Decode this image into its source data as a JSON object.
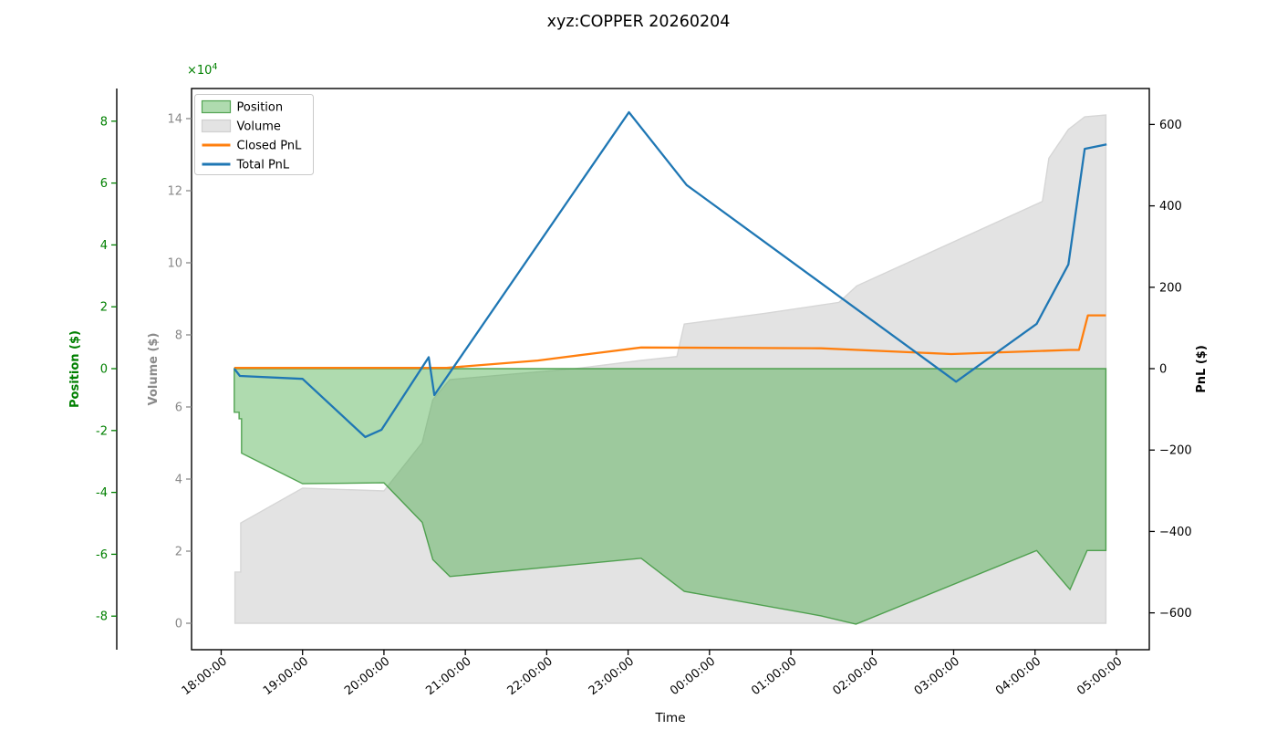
{
  "title": "xyz:COPPER 20260204",
  "chart_data": {
    "type": "area",
    "title": "xyz:COPPER 20260204",
    "xlabel": "Time",
    "x_range_hours": [
      -0.364,
      11.404
    ],
    "x_ticks": [
      {
        "t": 0,
        "label": "18:00:00"
      },
      {
        "t": 1,
        "label": "19:00:00"
      },
      {
        "t": 2,
        "label": "20:00:00"
      },
      {
        "t": 3,
        "label": "21:00:00"
      },
      {
        "t": 4,
        "label": "22:00:00"
      },
      {
        "t": 5,
        "label": "23:00:00"
      },
      {
        "t": 6,
        "label": "00:00:00"
      },
      {
        "t": 7,
        "label": "01:00:00"
      },
      {
        "t": 8,
        "label": "02:00:00"
      },
      {
        "t": 9,
        "label": "03:00:00"
      },
      {
        "t": 10,
        "label": "04:00:00"
      },
      {
        "t": 11,
        "label": "05:00:00"
      }
    ],
    "axes": [
      {
        "id": "position",
        "label": "Position ($)",
        "side": "far-left",
        "color": "#008000",
        "offset_text": "×10",
        "offset_exp": "4",
        "ticks": [
          -8,
          -6,
          -4,
          -2,
          0,
          2,
          4,
          6,
          8
        ],
        "range": [
          -9.085,
          9.056
        ],
        "unit": "1e4 $"
      },
      {
        "id": "volume",
        "label": "Volume ($)",
        "side": "left",
        "color": "#8a8a8a",
        "ticks": [
          0,
          2,
          4,
          6,
          8,
          10,
          12,
          14
        ],
        "range": [
          -0.734,
          14.835
        ],
        "unit": "1e4 $"
      },
      {
        "id": "pnl",
        "label": "PnL ($)",
        "side": "right",
        "color": "#000000",
        "ticks": [
          -600,
          -400,
          -200,
          0,
          200,
          400,
          600
        ],
        "range": [
          -690.5,
          688.3
        ],
        "unit": "$"
      }
    ],
    "series": [
      {
        "name": "Volume",
        "axis": "volume",
        "kind": "area",
        "baseline": 0,
        "fill": "#e3e3e3",
        "stroke": "#d6d6d6",
        "points": [
          [
            0.17,
            0
          ],
          [
            0.17,
            1.42
          ],
          [
            0.24,
            1.42
          ],
          [
            0.24,
            2.78
          ],
          [
            1.0,
            3.75
          ],
          [
            2.0,
            3.67
          ],
          [
            2.47,
            5.01
          ],
          [
            2.6,
            6.2
          ],
          [
            2.81,
            6.76
          ],
          [
            4.34,
            7.06
          ],
          [
            5.16,
            7.29
          ],
          [
            5.6,
            7.4
          ],
          [
            5.69,
            8.3
          ],
          [
            6.69,
            8.6
          ],
          [
            7.59,
            8.9
          ],
          [
            7.81,
            9.36
          ],
          [
            10.09,
            11.7
          ],
          [
            10.17,
            12.9
          ],
          [
            10.41,
            13.7
          ],
          [
            10.61,
            14.05
          ],
          [
            10.87,
            14.1
          ]
        ]
      },
      {
        "name": "Position",
        "axis": "position",
        "kind": "area",
        "baseline": 0,
        "fill": "rgba(44,160,44,0.38)",
        "stroke": "rgba(60,150,60,0.85)",
        "points": [
          [
            0.16,
            0
          ],
          [
            0.16,
            -1.41
          ],
          [
            0.22,
            -1.41
          ],
          [
            0.22,
            -1.62
          ],
          [
            0.25,
            -1.62
          ],
          [
            0.25,
            -2.73
          ],
          [
            1.0,
            -3.72
          ],
          [
            2.0,
            -3.69
          ],
          [
            2.47,
            -4.97
          ],
          [
            2.6,
            -6.17
          ],
          [
            2.81,
            -6.72
          ],
          [
            5.16,
            -6.13
          ],
          [
            5.69,
            -7.2
          ],
          [
            7.37,
            -7.99
          ],
          [
            7.8,
            -8.26
          ],
          [
            10.02,
            -5.88
          ],
          [
            10.43,
            -7.14
          ],
          [
            10.64,
            -5.88
          ],
          [
            10.87,
            -5.88
          ]
        ]
      },
      {
        "name": "Closed PnL",
        "axis": "pnl",
        "kind": "line",
        "stroke": "#ff7f0e",
        "points": [
          [
            0.16,
            2
          ],
          [
            2.77,
            2
          ],
          [
            3.89,
            20
          ],
          [
            4.64,
            39
          ],
          [
            5.16,
            52
          ],
          [
            7.37,
            50
          ],
          [
            8.97,
            36
          ],
          [
            10.43,
            46
          ],
          [
            10.54,
            46
          ],
          [
            10.65,
            131
          ],
          [
            10.87,
            131
          ]
        ]
      },
      {
        "name": "Total PnL",
        "axis": "pnl",
        "kind": "line",
        "stroke": "#1f77b4",
        "points": [
          [
            0.16,
            0
          ],
          [
            0.23,
            -18
          ],
          [
            1.0,
            -25
          ],
          [
            1.77,
            -168
          ],
          [
            1.97,
            -150
          ],
          [
            2.55,
            28
          ],
          [
            2.62,
            -65
          ],
          [
            5.01,
            630
          ],
          [
            5.72,
            451
          ],
          [
            9.03,
            -32
          ],
          [
            10.02,
            110
          ],
          [
            10.41,
            256
          ],
          [
            10.61,
            540
          ],
          [
            10.88,
            551
          ]
        ]
      }
    ],
    "legend": {
      "position": "upper-left",
      "entries": [
        {
          "label": "Position",
          "swatch": "patch",
          "fill": "rgba(44,160,44,0.38)",
          "stroke": "rgba(60,150,60,0.85)"
        },
        {
          "label": "Volume",
          "swatch": "patch",
          "fill": "#e3e3e3",
          "stroke": "#d0d0d0"
        },
        {
          "label": "Closed PnL",
          "swatch": "line",
          "stroke": "#ff7f0e"
        },
        {
          "label": "Total PnL",
          "swatch": "line",
          "stroke": "#1f77b4"
        }
      ]
    }
  }
}
